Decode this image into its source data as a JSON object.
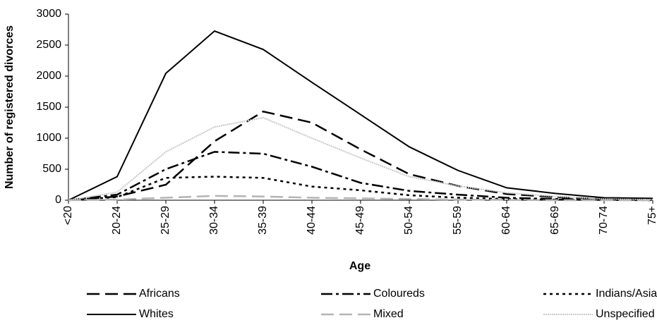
{
  "chart_data": {
    "type": "line",
    "ylabel": "Number of registered divorces",
    "xlabel": "Age",
    "categories": [
      "<20",
      "20-24",
      "25-29",
      "30-34",
      "35-39",
      "40-44",
      "45-49",
      "50-54",
      "55-59",
      "60-64",
      "65-69",
      "70-74",
      "75+"
    ],
    "ylim": [
      0,
      3000
    ],
    "yticks": [
      0,
      500,
      1000,
      1500,
      2000,
      2500,
      3000
    ],
    "legend": "bottom",
    "series": [
      {
        "name": "Africans",
        "color": "#000000",
        "dash": "18,8",
        "width": 2.5,
        "values": [
          0,
          60,
          250,
          950,
          1430,
          1250,
          820,
          420,
          230,
          100,
          50,
          20,
          10
        ]
      },
      {
        "name": "Coloureds",
        "color": "#000000",
        "dash": "16,5,4,5",
        "width": 2.5,
        "values": [
          0,
          90,
          500,
          780,
          750,
          540,
          280,
          150,
          90,
          40,
          20,
          10,
          5
        ]
      },
      {
        "name": "Indians/Asians",
        "color": "#000000",
        "dash": "4,5",
        "width": 2.5,
        "values": [
          0,
          50,
          360,
          380,
          360,
          220,
          160,
          80,
          40,
          20,
          10,
          5,
          0
        ]
      },
      {
        "name": "Whites",
        "color": "#000000",
        "dash": "none",
        "width": 2,
        "values": [
          0,
          380,
          2045,
          2727,
          2430,
          1900,
          1380,
          860,
          480,
          200,
          110,
          40,
          30
        ]
      },
      {
        "name": "Mixed",
        "color": "#b4b4b4",
        "dash": "18,8",
        "width": 2.5,
        "values": [
          0,
          10,
          40,
          70,
          60,
          40,
          30,
          20,
          10,
          5,
          0,
          0,
          0
        ]
      },
      {
        "name": "Unspecified",
        "color": "#c8c8c8",
        "dash": "2,1",
        "width": 2,
        "values": [
          0,
          130,
          780,
          1180,
          1330,
          1000,
          680,
          380,
          230,
          120,
          60,
          20,
          10
        ]
      }
    ]
  }
}
